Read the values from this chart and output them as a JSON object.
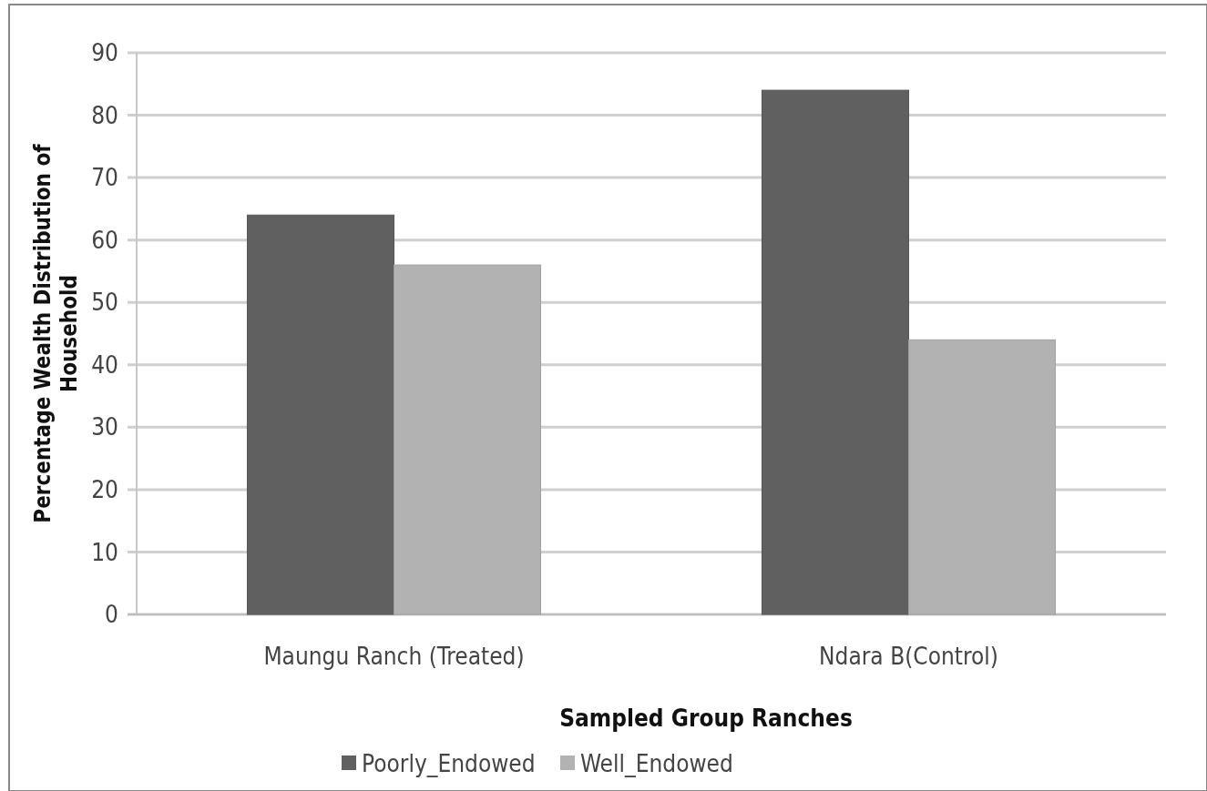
{
  "chart_data": {
    "type": "bar",
    "xlabel": "Sampled  Group Ranches",
    "ylabel": "Percentage Wealth Distribution of Household",
    "categories": [
      "Maungu Ranch (Treated)",
      "Ndara B(Control)"
    ],
    "series": [
      {
        "name": "Poorly_Endowed",
        "color": "#606060",
        "values": [
          64,
          84
        ]
      },
      {
        "name": "Well_Endowed",
        "color": "#b2b2b2",
        "values": [
          56,
          44
        ]
      }
    ],
    "ylim": [
      0,
      90
    ],
    "yticks": [
      0,
      10,
      20,
      30,
      40,
      50,
      60,
      70,
      80,
      90
    ],
    "grid": "y",
    "legend": "bottom"
  }
}
